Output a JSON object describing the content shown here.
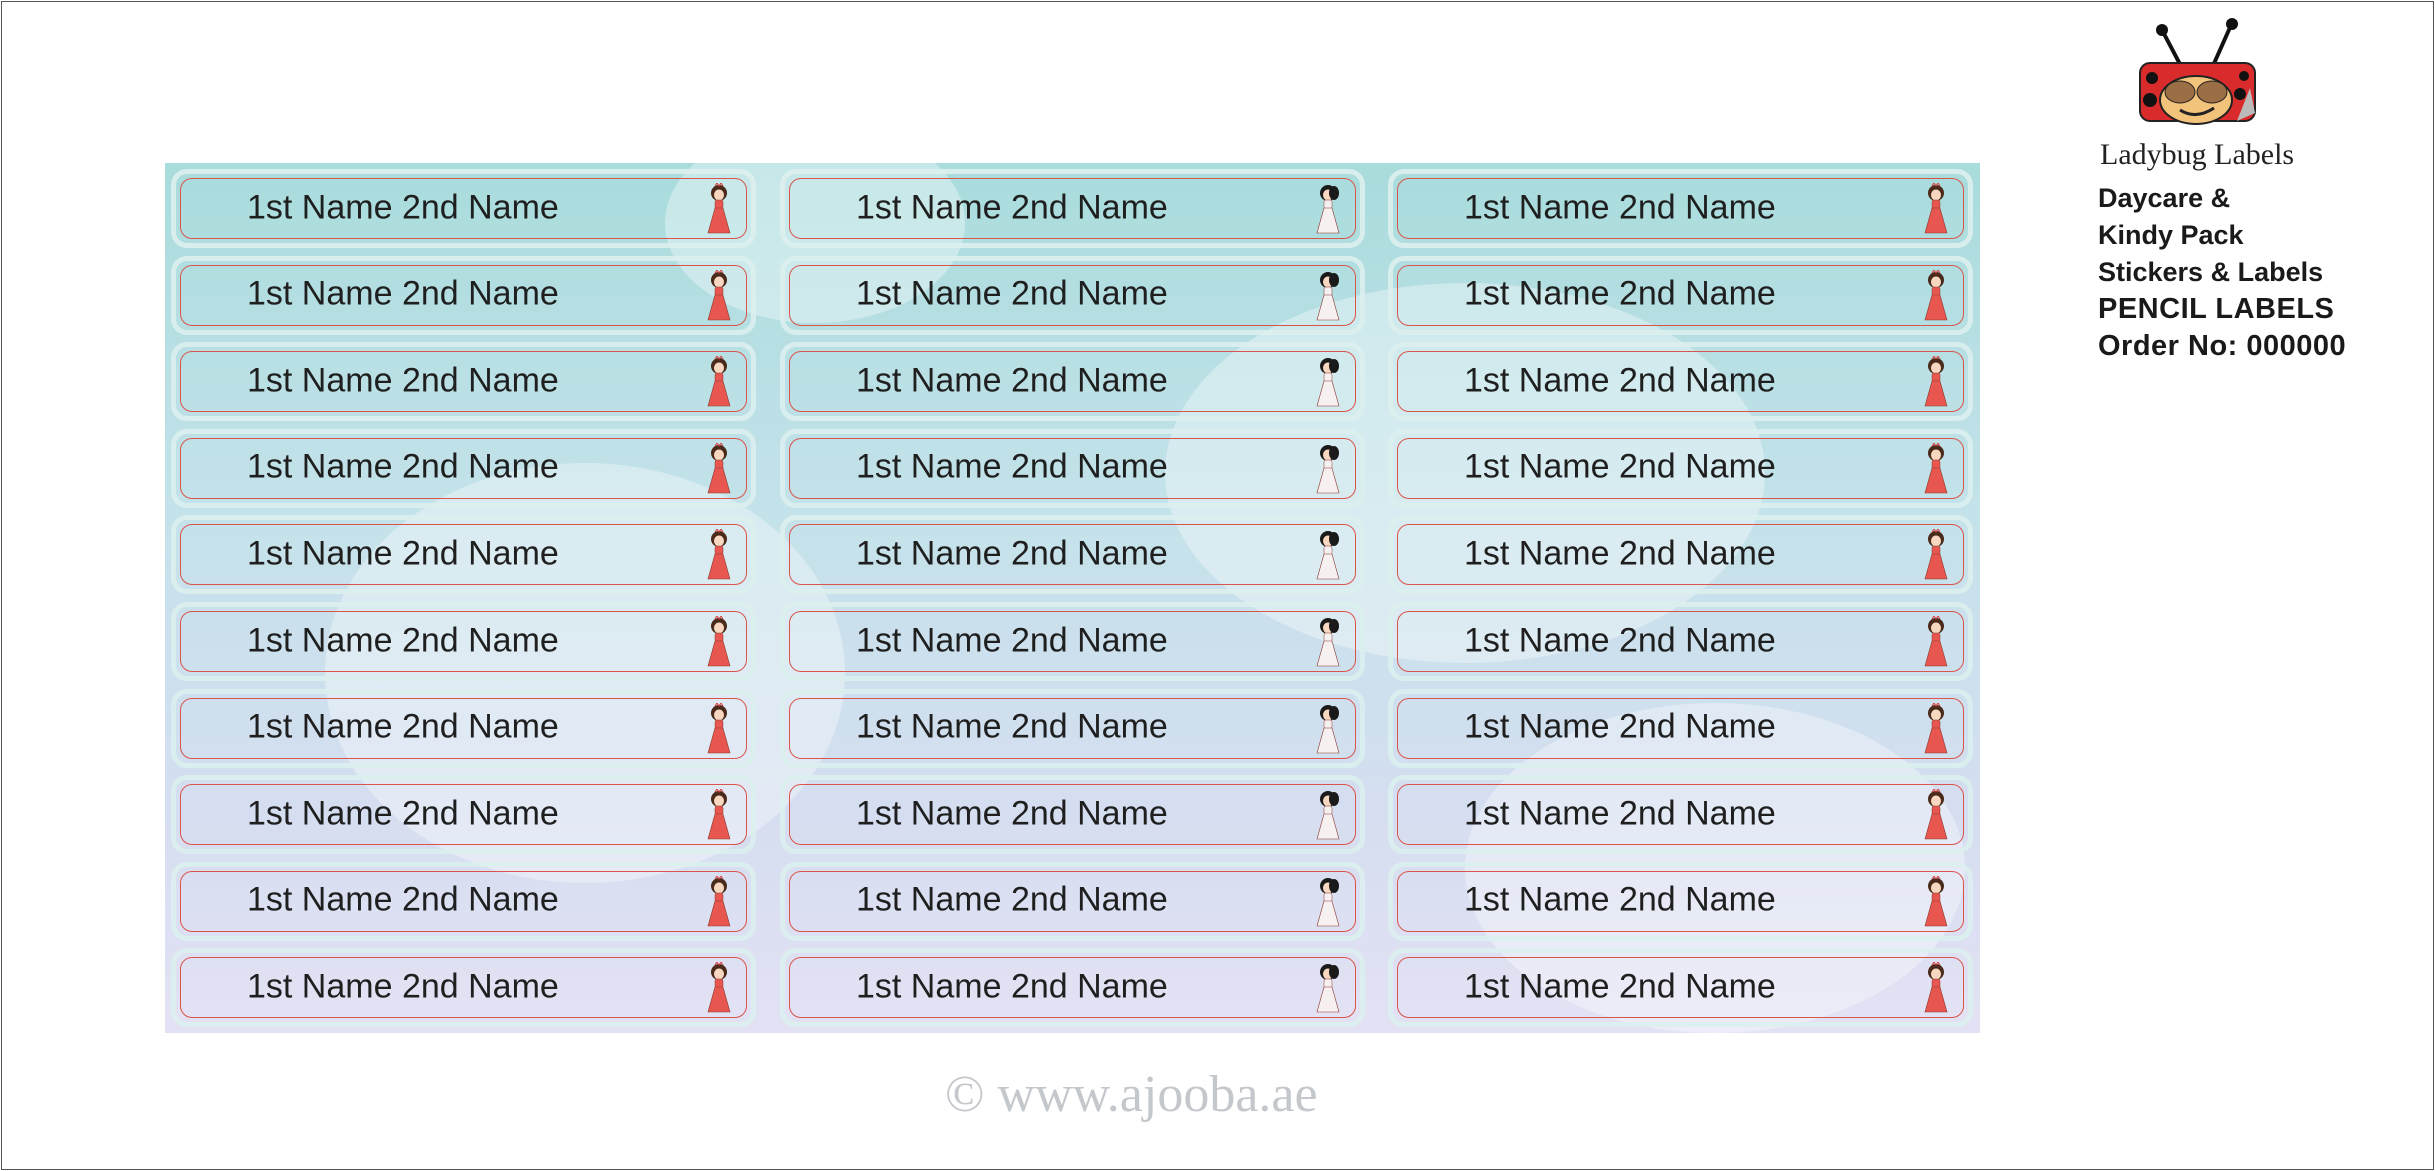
{
  "labels": {
    "text": "1st Name 2nd Name",
    "columns": [
      {
        "icon": "red-dress-princess-icon",
        "rows": 10
      },
      {
        "icon": "white-dress-princess-icon",
        "rows": 10
      },
      {
        "icon": "red-dress-princess-icon",
        "rows": 10
      }
    ],
    "border_color": "#d9544a"
  },
  "brand": {
    "logo": "ladybug-logo",
    "name": "Ladybug Labels",
    "lines": [
      "Daycare &",
      "Kindy Pack",
      "Stickers & Labels"
    ],
    "product": "PENCIL LABELS",
    "order": "Order No: 000000"
  },
  "watermark": "© www.ajooba.ae"
}
